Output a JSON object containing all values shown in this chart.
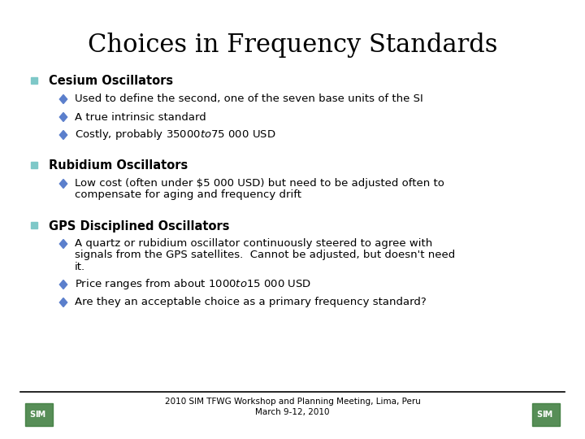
{
  "title": "Choices in Frequency Standards",
  "title_font": "DejaVu Serif",
  "title_size": 22,
  "title_color": "#000000",
  "bg_color": "#ffffff",
  "square_bullet_color": "#7ec8c8",
  "diamond_bullet_color": "#5b7fcc",
  "footer_line_color": "#000000",
  "footer_text1": "2010 SIM TFWG Workshop and Planning Meeting, Lima, Peru",
  "footer_text2": "March 9-12, 2010",
  "header_font_size": 10.5,
  "bullet_font_size": 9.5,
  "sections": [
    {
      "header": "Cesium Oscillators",
      "bullets": [
        "Used to define the second, one of the seven base units of the SI",
        "A true intrinsic standard",
        "Costly, probably $35 000 to $75 000 USD"
      ]
    },
    {
      "header": "Rubidium Oscillators",
      "bullets": [
        "Low cost (often under $5 000 USD) but need to be adjusted often to compensate for aging and frequency drift"
      ]
    },
    {
      "header": "GPS Disciplined Oscillators",
      "bullets": [
        "A quartz or rubidium oscillator continuously steered to agree with signals from the GPS satellites.  Cannot be adjusted, but doesn't need it.",
        "Price ranges from about $1 000 to $15 000 USD",
        "Are they an acceptable choice as a primary frequency standard?"
      ]
    }
  ]
}
